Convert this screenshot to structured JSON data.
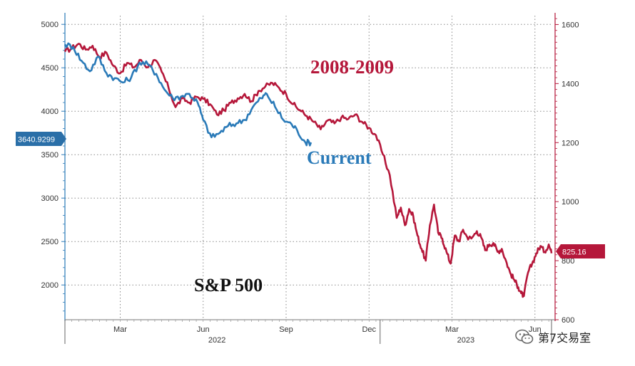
{
  "chart_data": {
    "type": "line",
    "title": "S&P 500",
    "left_axis": {
      "range": [
        1600,
        5100
      ],
      "ticks": [
        2000,
        2500,
        3000,
        3500,
        4000,
        4500,
        5000
      ]
    },
    "right_axis": {
      "range": [
        600,
        1630
      ],
      "ticks": [
        600,
        800,
        1000,
        1200,
        1400,
        1600
      ]
    },
    "x_axis": {
      "month_labels": [
        "Mar",
        "Jun",
        "Sep",
        "Dec",
        "Mar",
        "Jun"
      ],
      "month_positions": [
        2,
        5,
        8,
        11,
        14,
        17
      ],
      "year_labels": [
        "2022",
        "2023"
      ],
      "year_positions": [
        5.5,
        14.5
      ],
      "range": [
        0,
        17.6
      ],
      "dividers": [
        0,
        11.4,
        17.6
      ]
    },
    "grid": true,
    "series": [
      {
        "name": "2008-2009",
        "color": "#b5173a",
        "axis": "right",
        "points": [
          [
            0,
            1508
          ],
          [
            0.25,
            1520
          ],
          [
            0.5,
            1535
          ],
          [
            0.75,
            1515
          ],
          [
            1,
            1528
          ],
          [
            1.25,
            1490
          ],
          [
            1.5,
            1505
          ],
          [
            1.75,
            1460
          ],
          [
            2,
            1435
          ],
          [
            2.25,
            1470
          ],
          [
            2.5,
            1455
          ],
          [
            2.75,
            1480
          ],
          [
            3,
            1455
          ],
          [
            3.25,
            1480
          ],
          [
            3.5,
            1440
          ],
          [
            3.75,
            1385
          ],
          [
            4,
            1320
          ],
          [
            4.25,
            1350
          ],
          [
            4.5,
            1335
          ],
          [
            4.75,
            1355
          ],
          [
            5,
            1348
          ],
          [
            5.25,
            1330
          ],
          [
            5.5,
            1295
          ],
          [
            5.75,
            1310
          ],
          [
            6,
            1335
          ],
          [
            6.25,
            1350
          ],
          [
            6.5,
            1365
          ],
          [
            6.75,
            1340
          ],
          [
            7,
            1375
          ],
          [
            7.25,
            1390
          ],
          [
            7.5,
            1402
          ],
          [
            7.75,
            1385
          ],
          [
            8,
            1365
          ],
          [
            8.25,
            1330
          ],
          [
            8.5,
            1310
          ],
          [
            8.75,
            1290
          ],
          [
            9,
            1270
          ],
          [
            9.25,
            1245
          ],
          [
            9.5,
            1275
          ],
          [
            9.75,
            1265
          ],
          [
            10,
            1285
          ],
          [
            10.25,
            1280
          ],
          [
            10.5,
            1295
          ],
          [
            10.75,
            1270
          ],
          [
            11,
            1250
          ],
          [
            11.25,
            1225
          ],
          [
            11.5,
            1160
          ],
          [
            11.75,
            1090
          ],
          [
            12,
            945
          ],
          [
            12.15,
            980
          ],
          [
            12.3,
            920
          ],
          [
            12.45,
            975
          ],
          [
            12.6,
            950
          ],
          [
            12.75,
            885
          ],
          [
            12.9,
            840
          ],
          [
            13.05,
            800
          ],
          [
            13.2,
            920
          ],
          [
            13.35,
            990
          ],
          [
            13.5,
            895
          ],
          [
            13.65,
            875
          ],
          [
            13.8,
            830
          ],
          [
            13.95,
            790
          ],
          [
            14.1,
            885
          ],
          [
            14.25,
            865
          ],
          [
            14.4,
            905
          ],
          [
            14.55,
            880
          ],
          [
            14.7,
            875
          ],
          [
            14.9,
            900
          ],
          [
            15.05,
            880
          ],
          [
            15.2,
            835
          ],
          [
            15.35,
            855
          ],
          [
            15.5,
            860
          ],
          [
            15.65,
            830
          ],
          [
            15.8,
            840
          ],
          [
            15.95,
            800
          ],
          [
            16.1,
            760
          ],
          [
            16.25,
            735
          ],
          [
            16.4,
            710
          ],
          [
            16.5,
            690
          ],
          [
            16.6,
            680
          ],
          [
            16.75,
            760
          ],
          [
            16.9,
            790
          ],
          [
            17.05,
            825
          ],
          [
            17.2,
            850
          ],
          [
            17.35,
            830
          ],
          [
            17.5,
            855
          ],
          [
            17.6,
            825
          ]
        ]
      },
      {
        "name": "Current",
        "color": "#2a7ab8",
        "axis": "left",
        "points": [
          [
            0,
            4770
          ],
          [
            0.3,
            4740
          ],
          [
            0.6,
            4580
          ],
          [
            0.9,
            4460
          ],
          [
            1.2,
            4630
          ],
          [
            1.5,
            4440
          ],
          [
            1.8,
            4380
          ],
          [
            2.1,
            4330
          ],
          [
            2.4,
            4390
          ],
          [
            2.7,
            4560
          ],
          [
            3,
            4540
          ],
          [
            3.3,
            4430
          ],
          [
            3.6,
            4250
          ],
          [
            3.9,
            4150
          ],
          [
            4.2,
            4170
          ],
          [
            4.5,
            4200
          ],
          [
            4.8,
            4100
          ],
          [
            5,
            3900
          ],
          [
            5.3,
            3700
          ],
          [
            5.6,
            3750
          ],
          [
            5.9,
            3830
          ],
          [
            6.2,
            3860
          ],
          [
            6.5,
            3900
          ],
          [
            6.8,
            4050
          ],
          [
            7.1,
            4150
          ],
          [
            7.3,
            4200
          ],
          [
            7.6,
            4050
          ],
          [
            7.9,
            3900
          ],
          [
            8.2,
            3850
          ],
          [
            8.4,
            3780
          ],
          [
            8.7,
            3640
          ],
          [
            8.9,
            3640.9299
          ]
        ]
      }
    ],
    "annotations": {
      "series_label_2008": "2008-2009",
      "series_label_current": "Current",
      "badge_left": "3640.9299",
      "badge_right": "825.16"
    },
    "watermark": "第7交易室"
  }
}
